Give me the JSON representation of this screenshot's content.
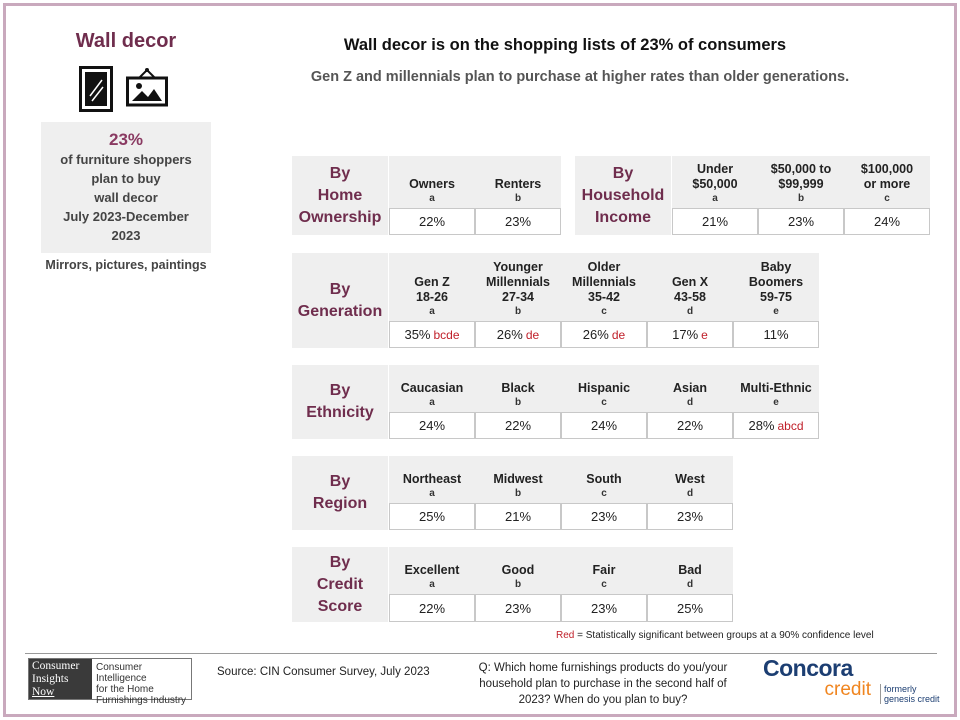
{
  "side": {
    "title": "Wall decor",
    "icons": [
      "mirror-icon",
      "framed-picture-icon"
    ],
    "stat_value": "23%",
    "stat_lines": [
      "of furniture shoppers",
      "plan to buy",
      "wall decor",
      "July  2023-December",
      "2023"
    ],
    "note": "Mirrors, pictures, paintings"
  },
  "header": {
    "title": "Wall decor is on the shopping  lists of 23% of consumers",
    "subtitle": "Gen Z and millennials plan to purchase at higher rates than older generations."
  },
  "blocks": [
    {
      "id": "home",
      "label": [
        "By",
        "Home",
        "Ownership"
      ],
      "columns": [
        {
          "label": [
            "Owners"
          ],
          "letter": "a",
          "value": "22%",
          "sig": ""
        },
        {
          "label": [
            "Renters"
          ],
          "letter": "b",
          "value": "23%",
          "sig": ""
        }
      ]
    },
    {
      "id": "income",
      "label": [
        "By",
        "Household",
        "Income"
      ],
      "columns": [
        {
          "label": [
            "Under",
            "$50,000"
          ],
          "letter": "a",
          "value": "21%",
          "sig": ""
        },
        {
          "label": [
            "$50,000  to",
            "$99,999"
          ],
          "letter": "b",
          "value": "23%",
          "sig": ""
        },
        {
          "label": [
            "$100,000",
            "or more"
          ],
          "letter": "c",
          "value": "24%",
          "sig": ""
        }
      ]
    },
    {
      "id": "generation",
      "label": [
        "By",
        "Generation"
      ],
      "columns": [
        {
          "label": [
            "Gen Z",
            "18-26"
          ],
          "letter": "a",
          "value": "35%",
          "sig": "bcde"
        },
        {
          "label": [
            "Younger",
            "Millennials",
            "27-34"
          ],
          "letter": "b",
          "value": "26%",
          "sig": "de"
        },
        {
          "label": [
            "Older",
            "Millennials",
            "35-42"
          ],
          "letter": "c",
          "value": "26%",
          "sig": "de"
        },
        {
          "label": [
            "Gen X",
            "43-58"
          ],
          "letter": "d",
          "value": "17%",
          "sig": "e"
        },
        {
          "label": [
            "Baby",
            "Boomers",
            "59-75"
          ],
          "letter": "e",
          "value": "11%",
          "sig": ""
        }
      ]
    },
    {
      "id": "ethnicity",
      "label": [
        "By",
        "Ethnicity"
      ],
      "columns": [
        {
          "label": [
            "Caucasian"
          ],
          "letter": "a",
          "value": "24%",
          "sig": ""
        },
        {
          "label": [
            "Black"
          ],
          "letter": "b",
          "value": "22%",
          "sig": ""
        },
        {
          "label": [
            "Hispanic"
          ],
          "letter": "c",
          "value": "24%",
          "sig": ""
        },
        {
          "label": [
            "Asian"
          ],
          "letter": "d",
          "value": "22%",
          "sig": ""
        },
        {
          "label": [
            "Multi-Ethnic"
          ],
          "letter": "e",
          "value": "28%",
          "sig": "abcd"
        }
      ]
    },
    {
      "id": "region",
      "label": [
        "By",
        "Region"
      ],
      "columns": [
        {
          "label": [
            "Northeast"
          ],
          "letter": "a",
          "value": "25%",
          "sig": ""
        },
        {
          "label": [
            "Midwest"
          ],
          "letter": "b",
          "value": "21%",
          "sig": ""
        },
        {
          "label": [
            "South"
          ],
          "letter": "c",
          "value": "23%",
          "sig": ""
        },
        {
          "label": [
            "West"
          ],
          "letter": "d",
          "value": "23%",
          "sig": ""
        }
      ]
    },
    {
      "id": "credit",
      "label": [
        "By",
        "Credit",
        "Score"
      ],
      "columns": [
        {
          "label": [
            "Excellent"
          ],
          "letter": "a",
          "value": "22%",
          "sig": ""
        },
        {
          "label": [
            "Good"
          ],
          "letter": "b",
          "value": "23%",
          "sig": ""
        },
        {
          "label": [
            "Fair"
          ],
          "letter": "c",
          "value": "23%",
          "sig": ""
        },
        {
          "label": [
            "Bad"
          ],
          "letter": "d",
          "value": "25%",
          "sig": ""
        }
      ]
    }
  ],
  "legend": {
    "red_word": "Red",
    "text": " = Statistically significant between groups at a 90% confidence level"
  },
  "footer": {
    "cin_logo_lines": [
      "Consumer",
      "Insights",
      "Now"
    ],
    "cin_tagline_lines": [
      "Consumer Intelligence",
      "for the Home",
      "Furnishings Industry"
    ],
    "source": "Source:  CIN Consumer Survey, July 2023",
    "question_lines": [
      "Q: Which home furnishings products do you/your",
      "household plan to purchase in the second half of",
      "2023? When do you plan to buy?"
    ],
    "concora_top": "Concora",
    "concora_bottom": "credit",
    "formerly_lines": [
      "formerly",
      "genesis credit"
    ]
  },
  "colors": {
    "accent": "#6f2d4d",
    "significance": "#c0202a",
    "panel": "#efefef",
    "frame": "#c9a9bd",
    "concora_blue": "#1c3e72",
    "concora_orange": "#f0851f"
  }
}
